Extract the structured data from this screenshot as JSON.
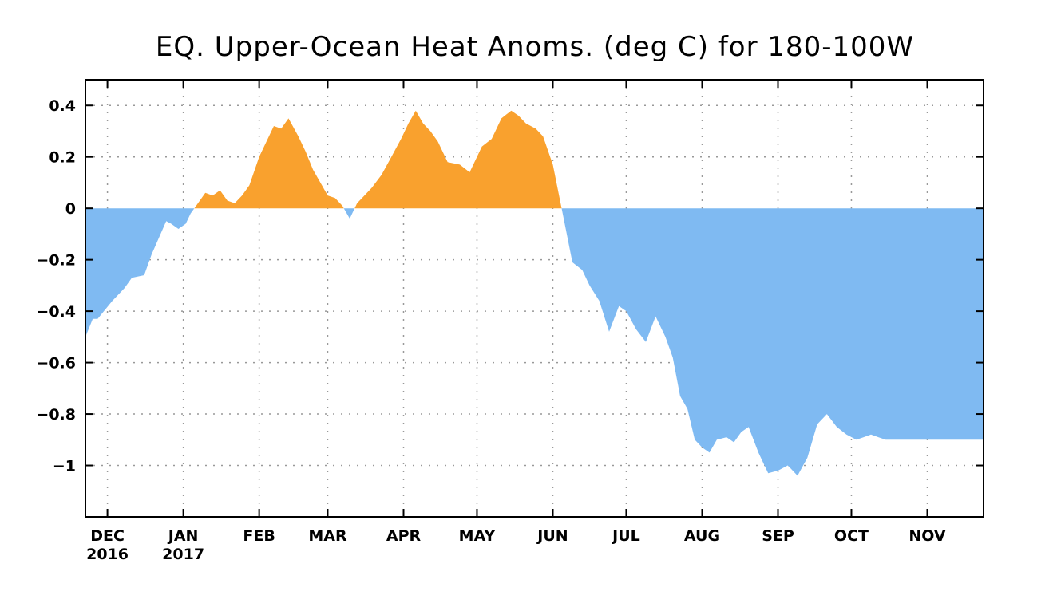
{
  "chart_data": {
    "type": "area",
    "title": "EQ. Upper-Ocean Heat Anoms. (deg C) for 180-100W",
    "xlabel": "",
    "ylabel": "",
    "x_range": [
      "2016-11-22",
      "2017-11-24"
    ],
    "ylim": [
      -1.2,
      0.5
    ],
    "y_ticks": [
      0.4,
      0.2,
      0,
      -0.2,
      -0.4,
      -0.6,
      -0.8,
      -1
    ],
    "y_tick_labels": [
      "0.4",
      "0.2",
      "0",
      "−0.2",
      "−0.4",
      "−0.6",
      "−0.8",
      "−1"
    ],
    "x_ticks": [
      {
        "date": "2016-12-01",
        "label": "DEC",
        "sublabel": "2016"
      },
      {
        "date": "2017-01-01",
        "label": "JAN",
        "sublabel": "2017"
      },
      {
        "date": "2017-02-01",
        "label": "FEB",
        "sublabel": ""
      },
      {
        "date": "2017-03-01",
        "label": "MAR",
        "sublabel": ""
      },
      {
        "date": "2017-04-01",
        "label": "APR",
        "sublabel": ""
      },
      {
        "date": "2017-05-01",
        "label": "MAY",
        "sublabel": ""
      },
      {
        "date": "2017-06-01",
        "label": "JUN",
        "sublabel": ""
      },
      {
        "date": "2017-07-01",
        "label": "JUL",
        "sublabel": ""
      },
      {
        "date": "2017-08-01",
        "label": "AUG",
        "sublabel": ""
      },
      {
        "date": "2017-09-01",
        "label": "SEP",
        "sublabel": ""
      },
      {
        "date": "2017-10-01",
        "label": "OCT",
        "sublabel": ""
      },
      {
        "date": "2017-11-01",
        "label": "NOV",
        "sublabel": ""
      }
    ],
    "grid": true,
    "positive_color": "#f9a12e",
    "negative_color": "#7fbaf2",
    "series": [
      {
        "x": [
          "2016-11-22",
          "2016-11-25",
          "2016-11-27",
          "2016-12-03",
          "2016-12-06",
          "2016-12-08",
          "2016-12-11",
          "2016-12-16",
          "2016-12-19",
          "2016-12-25",
          "2016-12-27",
          "2016-12-30",
          "2017-01-02",
          "2017-01-04",
          "2017-01-07",
          "2017-01-10",
          "2017-01-13",
          "2017-01-16",
          "2017-01-19",
          "2017-01-22",
          "2017-01-25",
          "2017-01-28",
          "2017-02-01",
          "2017-02-04",
          "2017-02-07",
          "2017-02-10",
          "2017-02-13",
          "2017-02-17",
          "2017-02-20",
          "2017-02-23",
          "2017-02-26",
          "2017-03-01",
          "2017-03-04",
          "2017-03-07",
          "2017-03-10",
          "2017-03-13",
          "2017-03-16",
          "2017-03-19",
          "2017-03-23",
          "2017-03-27",
          "2017-03-31",
          "2017-04-03",
          "2017-04-06",
          "2017-04-09",
          "2017-04-12",
          "2017-04-15",
          "2017-04-19",
          "2017-04-24",
          "2017-04-28",
          "2017-05-03",
          "2017-05-07",
          "2017-05-11",
          "2017-05-15",
          "2017-05-18",
          "2017-05-21",
          "2017-05-25",
          "2017-05-28",
          "2017-06-01",
          "2017-06-05",
          "2017-06-09",
          "2017-06-13",
          "2017-06-16",
          "2017-06-20",
          "2017-06-24",
          "2017-06-28",
          "2017-07-01",
          "2017-07-05",
          "2017-07-09",
          "2017-07-13",
          "2017-07-17",
          "2017-07-20",
          "2017-07-23",
          "2017-07-26",
          "2017-07-29",
          "2017-08-01",
          "2017-08-04",
          "2017-08-07",
          "2017-08-11",
          "2017-08-14",
          "2017-08-17",
          "2017-08-20",
          "2017-08-24",
          "2017-08-28",
          "2017-09-01",
          "2017-09-05",
          "2017-09-09",
          "2017-09-13",
          "2017-09-17",
          "2017-09-21",
          "2017-09-25",
          "2017-09-29",
          "2017-10-03",
          "2017-10-06",
          "2017-10-09",
          "2017-10-12",
          "2017-10-15",
          "2017-10-18",
          "2017-10-21",
          "2017-10-24",
          "2017-10-27",
          "2017-10-30",
          "2017-11-03",
          "2017-11-07",
          "2017-11-11",
          "2017-11-15",
          "2017-11-19",
          "2017-11-24"
        ],
        "y": [
          -0.5,
          -0.43,
          -0.43,
          -0.36,
          -0.33,
          -0.31,
          -0.27,
          -0.26,
          -0.18,
          -0.05,
          -0.06,
          -0.08,
          -0.06,
          -0.02,
          0.02,
          0.06,
          0.05,
          0.07,
          0.03,
          0.02,
          0.05,
          0.09,
          0.2,
          0.26,
          0.32,
          0.31,
          0.35,
          0.28,
          0.22,
          0.15,
          0.1,
          0.05,
          0.04,
          0.01,
          -0.04,
          0.02,
          0.05,
          0.08,
          0.13,
          0.2,
          0.27,
          0.33,
          0.38,
          0.33,
          0.3,
          0.26,
          0.18,
          0.17,
          0.14,
          0.24,
          0.27,
          0.35,
          0.38,
          0.36,
          0.33,
          0.31,
          0.28,
          0.17,
          -0.02,
          -0.21,
          -0.24,
          -0.3,
          -0.36,
          -0.48,
          -0.38,
          -0.4,
          -0.47,
          -0.52,
          -0.42,
          -0.5,
          -0.58,
          -0.73,
          -0.78,
          -0.9,
          -0.93,
          -0.95,
          -0.9,
          -0.89,
          -0.91,
          -0.87,
          -0.85,
          -0.95,
          -1.03,
          -1.02,
          -1.0,
          -1.04,
          -0.97,
          -0.84,
          -0.8,
          -0.85,
          -0.88,
          -0.9,
          -0.89,
          -0.88,
          -0.89,
          -0.9,
          -0.9,
          -0.9,
          -0.9,
          -0.9,
          -0.9,
          -0.9,
          -0.9,
          -0.9,
          -0.9,
          -0.9,
          -0.9
        ]
      }
    ]
  }
}
